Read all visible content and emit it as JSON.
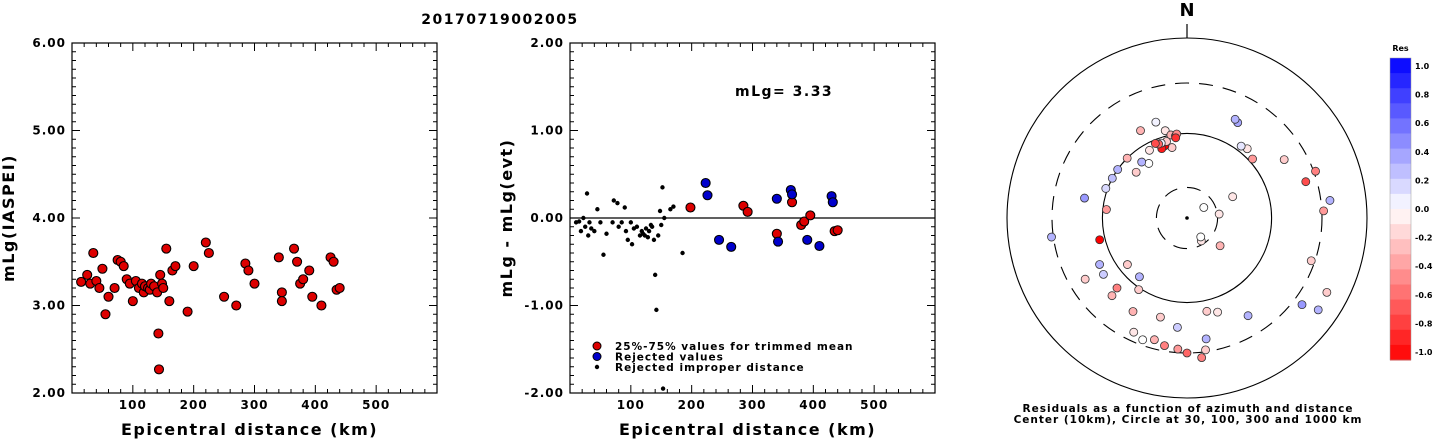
{
  "title": "20170719002005",
  "chart_data": [
    {
      "type": "scatter",
      "name": "magnitude-vs-distance",
      "xlabel": "Epicentral distance (km)",
      "ylabel": "mLg(IASPEI)",
      "xlim": [
        0,
        600
      ],
      "ylim": [
        2.0,
        6.0
      ],
      "xticks": [
        "100",
        "200",
        "300",
        "400",
        "500"
      ],
      "yticks": [
        "2.00",
        "3.00",
        "4.00",
        "5.00",
        "6.00"
      ],
      "series": [
        {
          "color": "#dd0000",
          "points": [
            [
              15,
              3.27
            ],
            [
              25,
              3.35
            ],
            [
              30,
              3.25
            ],
            [
              35,
              3.6
            ],
            [
              40,
              3.28
            ],
            [
              45,
              3.2
            ],
            [
              50,
              3.42
            ],
            [
              55,
              2.9
            ],
            [
              60,
              3.1
            ],
            [
              70,
              3.2
            ],
            [
              75,
              3.52
            ],
            [
              80,
              3.5
            ],
            [
              85,
              3.45
            ],
            [
              90,
              3.3
            ],
            [
              95,
              3.25
            ],
            [
              100,
              3.05
            ],
            [
              105,
              3.28
            ],
            [
              110,
              3.2
            ],
            [
              115,
              3.25
            ],
            [
              118,
              3.15
            ],
            [
              120,
              3.22
            ],
            [
              125,
              3.2
            ],
            [
              128,
              3.18
            ],
            [
              130,
              3.25
            ],
            [
              135,
              3.22
            ],
            [
              140,
              3.15
            ],
            [
              142,
              2.68
            ],
            [
              145,
              3.35
            ],
            [
              148,
              3.25
            ],
            [
              150,
              3.2
            ],
            [
              155,
              3.65
            ],
            [
              160,
              3.05
            ],
            [
              165,
              3.4
            ],
            [
              170,
              3.45
            ],
            [
              143,
              2.27
            ],
            [
              190,
              2.93
            ],
            [
              200,
              3.45
            ],
            [
              220,
              3.72
            ],
            [
              225,
              3.6
            ],
            [
              250,
              3.1
            ],
            [
              270,
              3.0
            ],
            [
              285,
              3.48
            ],
            [
              290,
              3.4
            ],
            [
              300,
              3.25
            ],
            [
              340,
              3.55
            ],
            [
              345,
              3.15
            ],
            [
              345,
              3.05
            ],
            [
              365,
              3.65
            ],
            [
              370,
              3.5
            ],
            [
              375,
              3.25
            ],
            [
              380,
              3.3
            ],
            [
              390,
              3.4
            ],
            [
              395,
              3.1
            ],
            [
              410,
              3.0
            ],
            [
              425,
              3.55
            ],
            [
              430,
              3.5
            ],
            [
              435,
              3.18
            ],
            [
              440,
              3.2
            ]
          ]
        }
      ]
    },
    {
      "type": "scatter",
      "name": "residual-vs-distance",
      "xlabel": "Epicentral distance (km)",
      "ylabel": "mLg - mLg(evt)",
      "xlim": [
        0,
        600
      ],
      "ylim": [
        -2.0,
        2.0
      ],
      "xticks": [
        "100",
        "200",
        "300",
        "400",
        "500"
      ],
      "yticks": [
        "-2.00",
        "-1.00",
        "0.00",
        "1.00",
        "2.00"
      ],
      "annotation": "mLg= 3.33",
      "hline": 0,
      "legend": [
        {
          "label": "25%-75% values for trimmed mean",
          "color": "#dd0000",
          "size": "large"
        },
        {
          "label": "Rejected values",
          "color": "#0000cc",
          "size": "large"
        },
        {
          "label": "Rejected improper distance",
          "color": "#000000",
          "size": "small"
        }
      ],
      "series": [
        {
          "label": "25%-75% values for trimmed mean",
          "color": "#dd0000",
          "points": [
            [
              198,
              0.12
            ],
            [
              285,
              0.14
            ],
            [
              292,
              0.07
            ],
            [
              340,
              -0.18
            ],
            [
              365,
              0.18
            ],
            [
              380,
              -0.08
            ],
            [
              385,
              -0.04
            ],
            [
              395,
              0.03
            ],
            [
              435,
              -0.15
            ],
            [
              440,
              -0.14
            ]
          ]
        },
        {
          "label": "Rejected values",
          "color": "#0000cc",
          "points": [
            [
              223,
              0.4
            ],
            [
              226,
              0.26
            ],
            [
              245,
              -0.25
            ],
            [
              265,
              -0.33
            ],
            [
              340,
              0.22
            ],
            [
              342,
              -0.27
            ],
            [
              363,
              0.32
            ],
            [
              365,
              0.27
            ],
            [
              390,
              -0.25
            ],
            [
              410,
              -0.32
            ],
            [
              430,
              0.25
            ],
            [
              432,
              0.18
            ]
          ]
        },
        {
          "label": "Rejected improper distance",
          "color": "#000000",
          "points": [
            [
              10,
              -0.05
            ],
            [
              15,
              -0.04
            ],
            [
              18,
              -0.15
            ],
            [
              22,
              0.0
            ],
            [
              25,
              -0.1
            ],
            [
              28,
              0.28
            ],
            [
              30,
              -0.2
            ],
            [
              32,
              -0.05
            ],
            [
              35,
              -0.12
            ],
            [
              40,
              -0.15
            ],
            [
              45,
              0.1
            ],
            [
              50,
              -0.05
            ],
            [
              55,
              -0.42
            ],
            [
              60,
              -0.18
            ],
            [
              70,
              -0.05
            ],
            [
              72,
              0.2
            ],
            [
              78,
              0.17
            ],
            [
              80,
              -0.1
            ],
            [
              85,
              -0.05
            ],
            [
              90,
              0.12
            ],
            [
              92,
              -0.15
            ],
            [
              95,
              -0.25
            ],
            [
              100,
              -0.05
            ],
            [
              102,
              -0.3
            ],
            [
              105,
              -0.12
            ],
            [
              110,
              -0.1
            ],
            [
              115,
              -0.2
            ],
            [
              118,
              -0.15
            ],
            [
              120,
              -0.18
            ],
            [
              123,
              -0.2
            ],
            [
              125,
              -0.12
            ],
            [
              128,
              -0.22
            ],
            [
              130,
              -0.15
            ],
            [
              133,
              -0.08
            ],
            [
              135,
              -0.1
            ],
            [
              138,
              -0.25
            ],
            [
              140,
              -0.65
            ],
            [
              142,
              -1.05
            ],
            [
              145,
              -0.2
            ],
            [
              148,
              0.08
            ],
            [
              150,
              -0.08
            ],
            [
              152,
              0.35
            ],
            [
              153,
              -1.95
            ],
            [
              155,
              0.0
            ],
            [
              165,
              0.1
            ],
            [
              170,
              0.13
            ],
            [
              185,
              -0.4
            ]
          ]
        }
      ]
    },
    {
      "type": "polar-scatter",
      "name": "residual-azimuth-map",
      "north_label": "N",
      "caption": [
        "Residuals as a function of azimuth and distance",
        "Center (10km), Circle at 30, 100, 300 and 1000 km"
      ],
      "rings_km": [
        10,
        30,
        100,
        300,
        1000
      ],
      "colorbar": {
        "title": "Res",
        "ticks": [
          "1.0",
          "0.8",
          "0.6",
          "0.4",
          "0.2",
          "0.0",
          "-0.2",
          "-0.4",
          "-0.6",
          "-0.8",
          "-1.0"
        ],
        "high_color": "#0000ff",
        "low_color": "#ff0000"
      },
      "points": [
        [
          28,
          0.6,
          0.35
        ],
        [
          26,
          0.61,
          0.3
        ],
        [
          332,
          0.55,
          -0.3
        ],
        [
          342,
          0.56,
          0.05
        ],
        [
          346,
          0.5,
          -0.1
        ],
        [
          349,
          0.47,
          -0.3
        ],
        [
          352,
          0.46,
          -0.55
        ],
        [
          353,
          0.47,
          -0.45
        ],
        [
          352,
          0.45,
          -0.8
        ],
        [
          348,
          0.4,
          -0.2
        ],
        [
          343,
          0.42,
          -1.0
        ],
        [
          340,
          0.41,
          -0.9
        ],
        [
          345,
          0.44,
          -0.2
        ],
        [
          341,
          0.44,
          0.05
        ],
        [
          339,
          0.44,
          -0.6
        ],
        [
          337,
          0.45,
          -0.7
        ],
        [
          331,
          0.43,
          -0.1
        ],
        [
          325,
          0.37,
          0.0
        ],
        [
          321,
          0.4,
          0.3
        ],
        [
          315,
          0.47,
          -0.3
        ],
        [
          312,
          0.38,
          -0.2
        ],
        [
          305,
          0.47,
          0.3
        ],
        [
          298,
          0.47,
          0.25
        ],
        [
          290,
          0.48,
          0.15
        ],
        [
          281,
          0.58,
          0.4
        ],
        [
          276,
          0.45,
          -0.4
        ],
        [
          256,
          0.5,
          -1.0
        ],
        [
          262,
          0.76,
          0.3
        ],
        [
          239,
          0.66,
          -0.2
        ],
        [
          242,
          0.55,
          0.3
        ],
        [
          236,
          0.56,
          0.2
        ],
        [
          225,
          0.55,
          -0.5
        ],
        [
          224,
          0.6,
          -0.3
        ],
        [
          214,
          0.48,
          -0.2
        ],
        [
          210,
          0.6,
          -0.3
        ],
        [
          205,
          0.7,
          -0.1
        ],
        [
          200,
          0.72,
          0.0
        ],
        [
          195,
          0.7,
          -0.3
        ],
        [
          190,
          0.72,
          -0.5
        ],
        [
          184,
          0.73,
          -0.4
        ],
        [
          180,
          0.75,
          -0.6
        ],
        [
          174,
          0.78,
          -0.5
        ],
        [
          172,
          0.74,
          -0.2
        ],
        [
          171,
          0.68,
          0.3
        ],
        [
          162,
          0.55,
          -0.1
        ],
        [
          148,
          0.64,
          0.3
        ],
        [
          127,
          0.8,
          0.4
        ],
        [
          125,
          0.89,
          0.3
        ],
        [
          118,
          0.88,
          -0.2
        ],
        [
          109,
          0.73,
          -0.2
        ],
        [
          87,
          0.76,
          -0.4
        ],
        [
          83,
          0.8,
          0.3
        ],
        [
          73,
          0.69,
          -0.7
        ],
        [
          70,
          0.76,
          -0.5
        ],
        [
          59,
          0.63,
          -0.2
        ],
        [
          48,
          0.49,
          -0.4
        ],
        [
          41,
          0.51,
          -0.1
        ],
        [
          37,
          0.5,
          0.1
        ],
        [
          83,
          0.18,
          -0.1
        ],
        [
          148,
          0.15,
          -0.1
        ],
        [
          144,
          0.13,
          0.0
        ],
        [
          130,
          0.24,
          -0.3
        ],
        [
          219,
          0.42,
          0.3
        ],
        [
          168,
          0.53,
          -0.2
        ],
        [
          185,
          0.61,
          0.2
        ],
        [
          195,
          0.57,
          -0.2
        ],
        [
          232,
          0.42,
          -0.2
        ],
        [
          65,
          0.28,
          -0.1
        ],
        [
          58,
          0.11,
          0.0
        ]
      ]
    }
  ]
}
